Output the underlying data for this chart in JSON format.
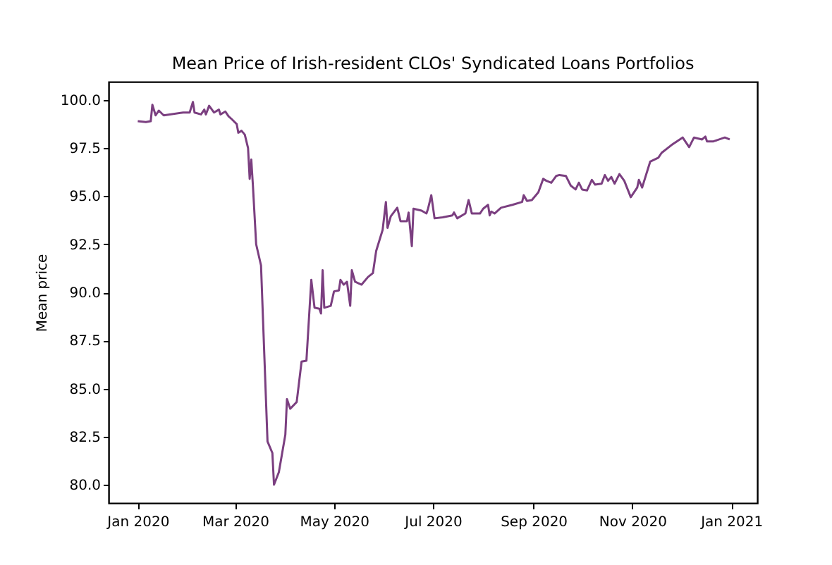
{
  "chart_data": {
    "type": "line",
    "title": "Mean Price of Irish-resident CLOs' Syndicated Loans Portfolios",
    "ylabel": "Mean price",
    "x": [
      "2020-01-01",
      "2020-01-06",
      "2020-01-09",
      "2020-01-10",
      "2020-01-12",
      "2020-01-14",
      "2020-01-17",
      "2020-01-29",
      "2020-02-02",
      "2020-02-04",
      "2020-02-05",
      "2020-02-09",
      "2020-02-11",
      "2020-02-12",
      "2020-02-14",
      "2020-02-17",
      "2020-02-20",
      "2020-02-21",
      "2020-02-24",
      "2020-02-26",
      "2020-02-28",
      "2020-03-02",
      "2020-03-03",
      "2020-03-05",
      "2020-03-07",
      "2020-03-09",
      "2020-03-10",
      "2020-03-11",
      "2020-03-12",
      "2020-03-14",
      "2020-03-17",
      "2020-03-21",
      "2020-03-24",
      "2020-03-25",
      "2020-03-28",
      "2020-04-01",
      "2020-04-02",
      "2020-04-04",
      "2020-04-08",
      "2020-04-11",
      "2020-04-14",
      "2020-04-17",
      "2020-04-19",
      "2020-04-22",
      "2020-04-23",
      "2020-04-24",
      "2020-04-25",
      "2020-04-29",
      "2020-05-01",
      "2020-05-04",
      "2020-05-05",
      "2020-05-07",
      "2020-05-09",
      "2020-05-11",
      "2020-05-12",
      "2020-05-14",
      "2020-05-18",
      "2020-05-22",
      "2020-05-25",
      "2020-05-27",
      "2020-05-31",
      "2020-06-02",
      "2020-06-03",
      "2020-06-05",
      "2020-06-09",
      "2020-06-11",
      "2020-06-15",
      "2020-06-16",
      "2020-06-18",
      "2020-06-19",
      "2020-06-24",
      "2020-06-27",
      "2020-06-28",
      "2020-06-30",
      "2020-07-02",
      "2020-07-07",
      "2020-07-13",
      "2020-07-14",
      "2020-07-16",
      "2020-07-21",
      "2020-07-23",
      "2020-07-25",
      "2020-07-30",
      "2020-08-01",
      "2020-08-04",
      "2020-08-05",
      "2020-08-06",
      "2020-08-08",
      "2020-08-12",
      "2020-08-19",
      "2020-08-25",
      "2020-08-26",
      "2020-08-28",
      "2020-08-31",
      "2020-09-04",
      "2020-09-07",
      "2020-09-09",
      "2020-09-12",
      "2020-09-15",
      "2020-09-17",
      "2020-09-21",
      "2020-09-24",
      "2020-09-27",
      "2020-09-29",
      "2020-10-01",
      "2020-10-04",
      "2020-10-07",
      "2020-10-09",
      "2020-10-13",
      "2020-10-15",
      "2020-10-17",
      "2020-10-19",
      "2020-10-21",
      "2020-10-24",
      "2020-10-27",
      "2020-10-31",
      "2020-11-04",
      "2020-11-05",
      "2020-11-07",
      "2020-11-12",
      "2020-11-17",
      "2020-11-19",
      "2020-11-25",
      "2020-12-02",
      "2020-12-06",
      "2020-12-09",
      "2020-12-14",
      "2020-12-16",
      "2020-12-17",
      "2020-12-21",
      "2020-12-28",
      "2020-12-31"
    ],
    "series": [
      {
        "color": "#7b3f80",
        "values": [
          98.9,
          98.85,
          98.9,
          99.75,
          99.2,
          99.45,
          99.2,
          99.35,
          99.35,
          99.9,
          99.35,
          99.25,
          99.5,
          99.25,
          99.7,
          99.35,
          99.5,
          99.25,
          99.4,
          99.15,
          99.0,
          98.75,
          98.3,
          98.4,
          98.2,
          97.5,
          95.9,
          96.9,
          95.55,
          92.5,
          91.4,
          82.25,
          81.65,
          80.0,
          80.65,
          82.6,
          84.45,
          83.95,
          84.3,
          86.4,
          86.45,
          90.65,
          89.2,
          89.15,
          88.9,
          91.15,
          89.2,
          89.3,
          90.05,
          90.1,
          90.65,
          90.4,
          90.55,
          89.3,
          91.15,
          90.55,
          90.4,
          90.8,
          91.0,
          92.15,
          93.25,
          94.7,
          93.35,
          93.95,
          94.4,
          93.7,
          93.7,
          94.15,
          92.4,
          94.35,
          94.25,
          94.1,
          94.35,
          95.05,
          93.85,
          93.9,
          94.0,
          94.15,
          93.85,
          94.1,
          94.8,
          94.1,
          94.1,
          94.35,
          94.55,
          94.0,
          94.2,
          94.1,
          94.4,
          94.55,
          94.7,
          95.05,
          94.75,
          94.8,
          95.2,
          95.9,
          95.8,
          95.7,
          96.05,
          96.1,
          96.05,
          95.55,
          95.35,
          95.7,
          95.35,
          95.3,
          95.85,
          95.6,
          95.65,
          96.1,
          95.8,
          96.0,
          95.65,
          96.15,
          95.8,
          94.95,
          95.45,
          95.85,
          95.45,
          96.8,
          97.0,
          97.25,
          97.65,
          98.05,
          97.55,
          98.05,
          97.95,
          98.1,
          97.85,
          97.85,
          98.05,
          97.95
        ]
      }
    ],
    "xlim": [
      "2019-12-14",
      "2021-01-17"
    ],
    "xticks": [
      {
        "value": "2020-01-01",
        "label": "Jan 2020"
      },
      {
        "value": "2020-03-01",
        "label": "Mar 2020"
      },
      {
        "value": "2020-05-01",
        "label": "May 2020"
      },
      {
        "value": "2020-07-01",
        "label": "Jul 2020"
      },
      {
        "value": "2020-09-01",
        "label": "Sep 2020"
      },
      {
        "value": "2020-11-01",
        "label": "Nov 2020"
      },
      {
        "value": "2021-01-01",
        "label": "Jan 2021"
      }
    ],
    "ylim": [
      79.05,
      100.95
    ],
    "yticks": [
      {
        "value": 80,
        "label": "80.0"
      },
      {
        "value": 82.5,
        "label": "82.5"
      },
      {
        "value": 85,
        "label": "85.0"
      },
      {
        "value": 87.5,
        "label": "87.5"
      },
      {
        "value": 90,
        "label": "90.0"
      },
      {
        "value": 92.5,
        "label": "92.5"
      },
      {
        "value": 95,
        "label": "95.0"
      },
      {
        "value": 97.5,
        "label": "97.5"
      },
      {
        "value": 100,
        "label": "100.0"
      }
    ],
    "grid": false,
    "legend": false,
    "line_style": "solid",
    "marker": "none"
  }
}
